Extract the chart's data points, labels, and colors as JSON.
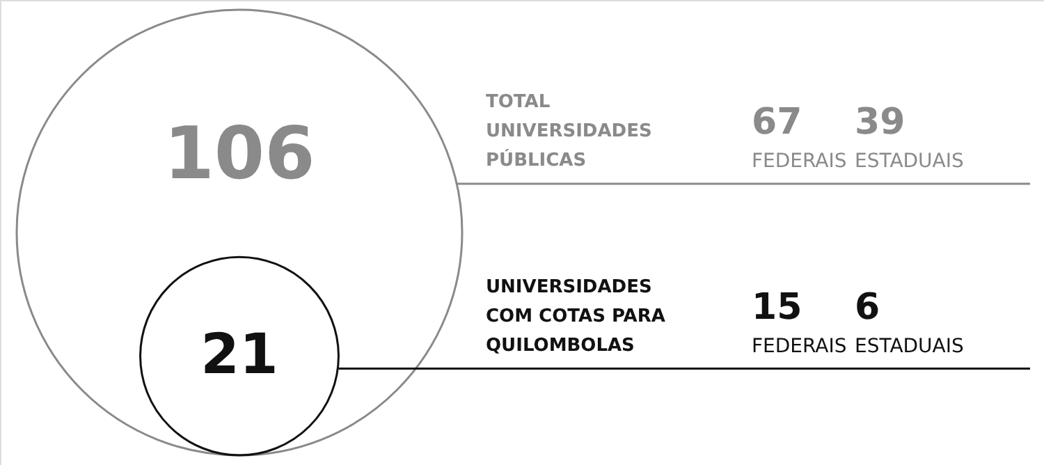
{
  "chart_data": {
    "type": "other",
    "categories": [
      "TOTAL UNIVERSIDADES PÚBLICAS",
      "UNIVERSIDADES COM COTAS PARA QUILOMBOLAS"
    ],
    "colors": [
      "#8a8a8a",
      "#111111"
    ],
    "data_labels": true,
    "series": [
      {
        "values": [
          106,
          21
        ]
      },
      {
        "name": "FEDERAIS",
        "values": [
          67,
          15
        ]
      },
      {
        "name": "ESTADUAIS",
        "values": [
          39,
          6
        ]
      }
    ]
  }
}
